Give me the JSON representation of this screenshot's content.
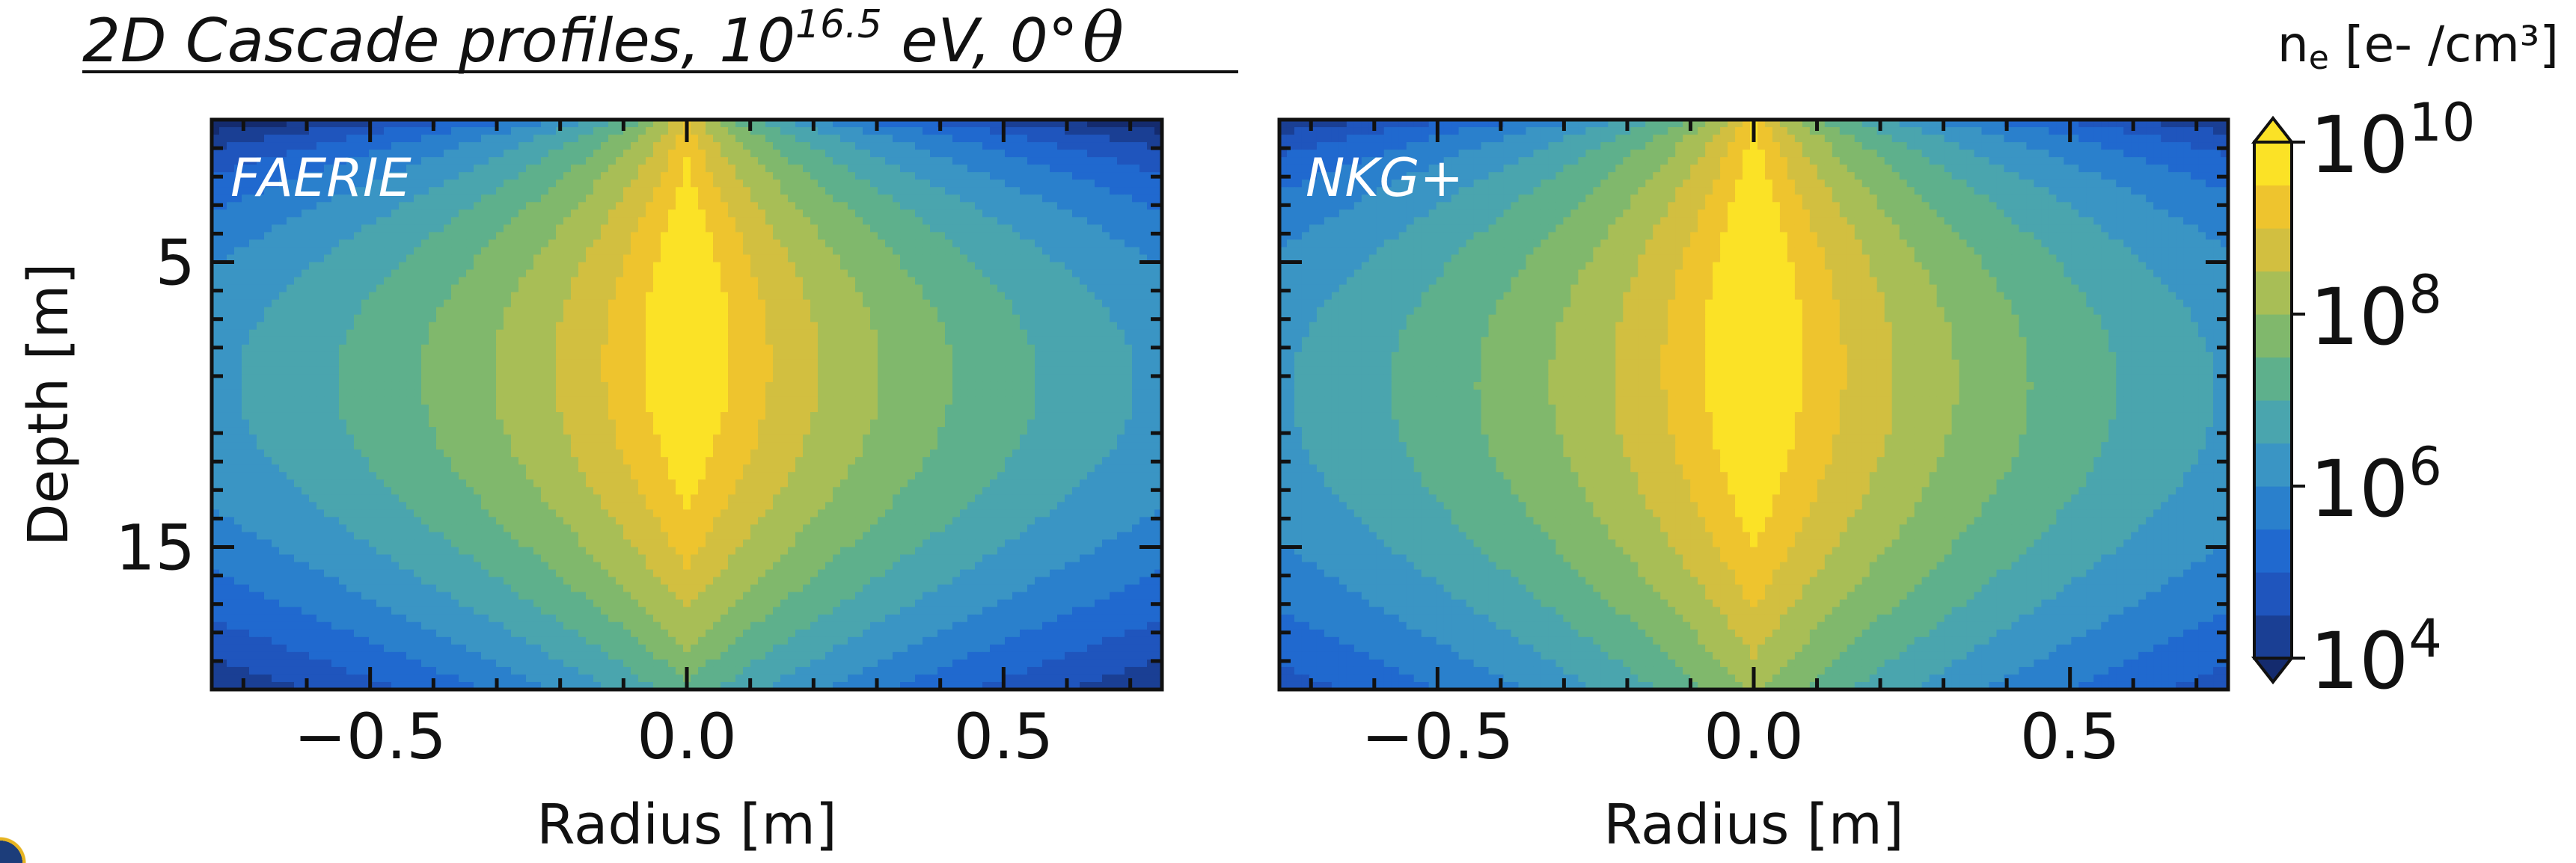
{
  "title": {
    "prefix": "2D Cascade profiles, 10",
    "exponent": "16.5",
    "suffix": " eV, 0°",
    "theta": "θ"
  },
  "colorbar": {
    "label_main": "n",
    "label_sub": "e",
    "label_rest": " [e- /cm³]",
    "ticks": [
      {
        "base": "10",
        "exp": "10",
        "value": 10
      },
      {
        "base": "10",
        "exp": "8",
        "value": 8
      },
      {
        "base": "10",
        "exp": "6",
        "value": 6
      },
      {
        "base": "10",
        "exp": "4",
        "value": 4
      }
    ],
    "log_min": 4,
    "log_max": 10,
    "levels": 12,
    "colors": [
      "#142b6e",
      "#1a3f94",
      "#1f55bd",
      "#2069cf",
      "#2a80cc",
      "#3a95c4",
      "#4aa5ae",
      "#5eb08c",
      "#80b86c",
      "#a8be56",
      "#d2bf40",
      "#eec42e",
      "#fbe226"
    ],
    "extend": "both"
  },
  "chart_data": [
    {
      "type": "heatmap",
      "panel_label": "FAERIE",
      "xlabel": "Radius [m]",
      "ylabel": "Depth [m]",
      "xlim": [
        -0.75,
        0.75
      ],
      "ylim": [
        20,
        0
      ],
      "xticks": [
        "−0.5",
        "0.0",
        "0.5"
      ],
      "xtick_values": [
        -0.5,
        0.0,
        0.5
      ],
      "yticks": [
        "5",
        "15"
      ],
      "ytick_values": [
        5,
        15
      ],
      "z_log_peak": 10,
      "z_depth_of_max": 7.5,
      "variant": "faerie"
    },
    {
      "type": "heatmap",
      "panel_label": "NKG+",
      "xlabel": "Radius [m]",
      "ylabel": "",
      "xlim": [
        -0.75,
        0.75
      ],
      "ylim": [
        20,
        0
      ],
      "xticks": [
        "−0.5",
        "0.0",
        "0.5"
      ],
      "xtick_values": [
        -0.5,
        0.0,
        0.5
      ],
      "yticks": [],
      "ytick_values": [
        5,
        15
      ],
      "z_log_peak": 10,
      "z_depth_of_max": 7.5,
      "variant": "nkg"
    }
  ]
}
